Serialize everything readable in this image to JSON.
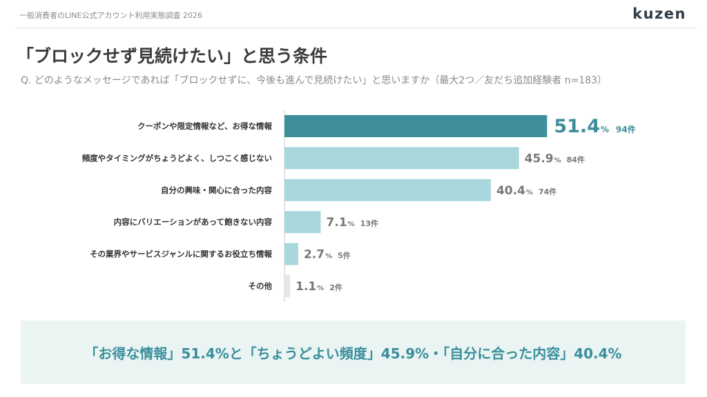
{
  "header": {
    "survey_title": "一般消費者のLINE公式アカウント利用実態調査 2026",
    "brand": "kuzen"
  },
  "slide": {
    "title": "「ブロックせず見続けたい」と思う条件",
    "question": "Q. どのようなメッセージであれば「ブロックせずに、今後も進んで見続けたい」と思いますか（最大2つ／友だち追加経験者 n=183）"
  },
  "chart_data": {
    "type": "bar",
    "orientation": "horizontal",
    "categories": [
      "クーポンや限定情報など、お得な情報",
      "頻度やタイミングがちょうどよく、しつこく感じない",
      "自分の興味・関心に合った内容",
      "内容にバリエーションがあって飽きない内容",
      "その業界やサービスジャンルに関するお役立ち情報",
      "その他"
    ],
    "values": [
      51.4,
      45.9,
      40.4,
      7.1,
      2.7,
      1.1
    ],
    "counts": [
      "94件",
      "84件",
      "74件",
      "13件",
      "5件",
      "2件"
    ],
    "value_unit": "%",
    "xlim": [
      0,
      100
    ],
    "colors": {
      "highlight_bar": "#3f8e9c",
      "bar": "#a8d8de",
      "other_bar": "#e4e6ea",
      "highlight_text": "#3f8e9c",
      "text": "#777777"
    }
  },
  "summary": {
    "text": "「お得な情報」51.4%と「ちょうどよい頻度」45.9%・「自分に合った内容」40.4%"
  }
}
